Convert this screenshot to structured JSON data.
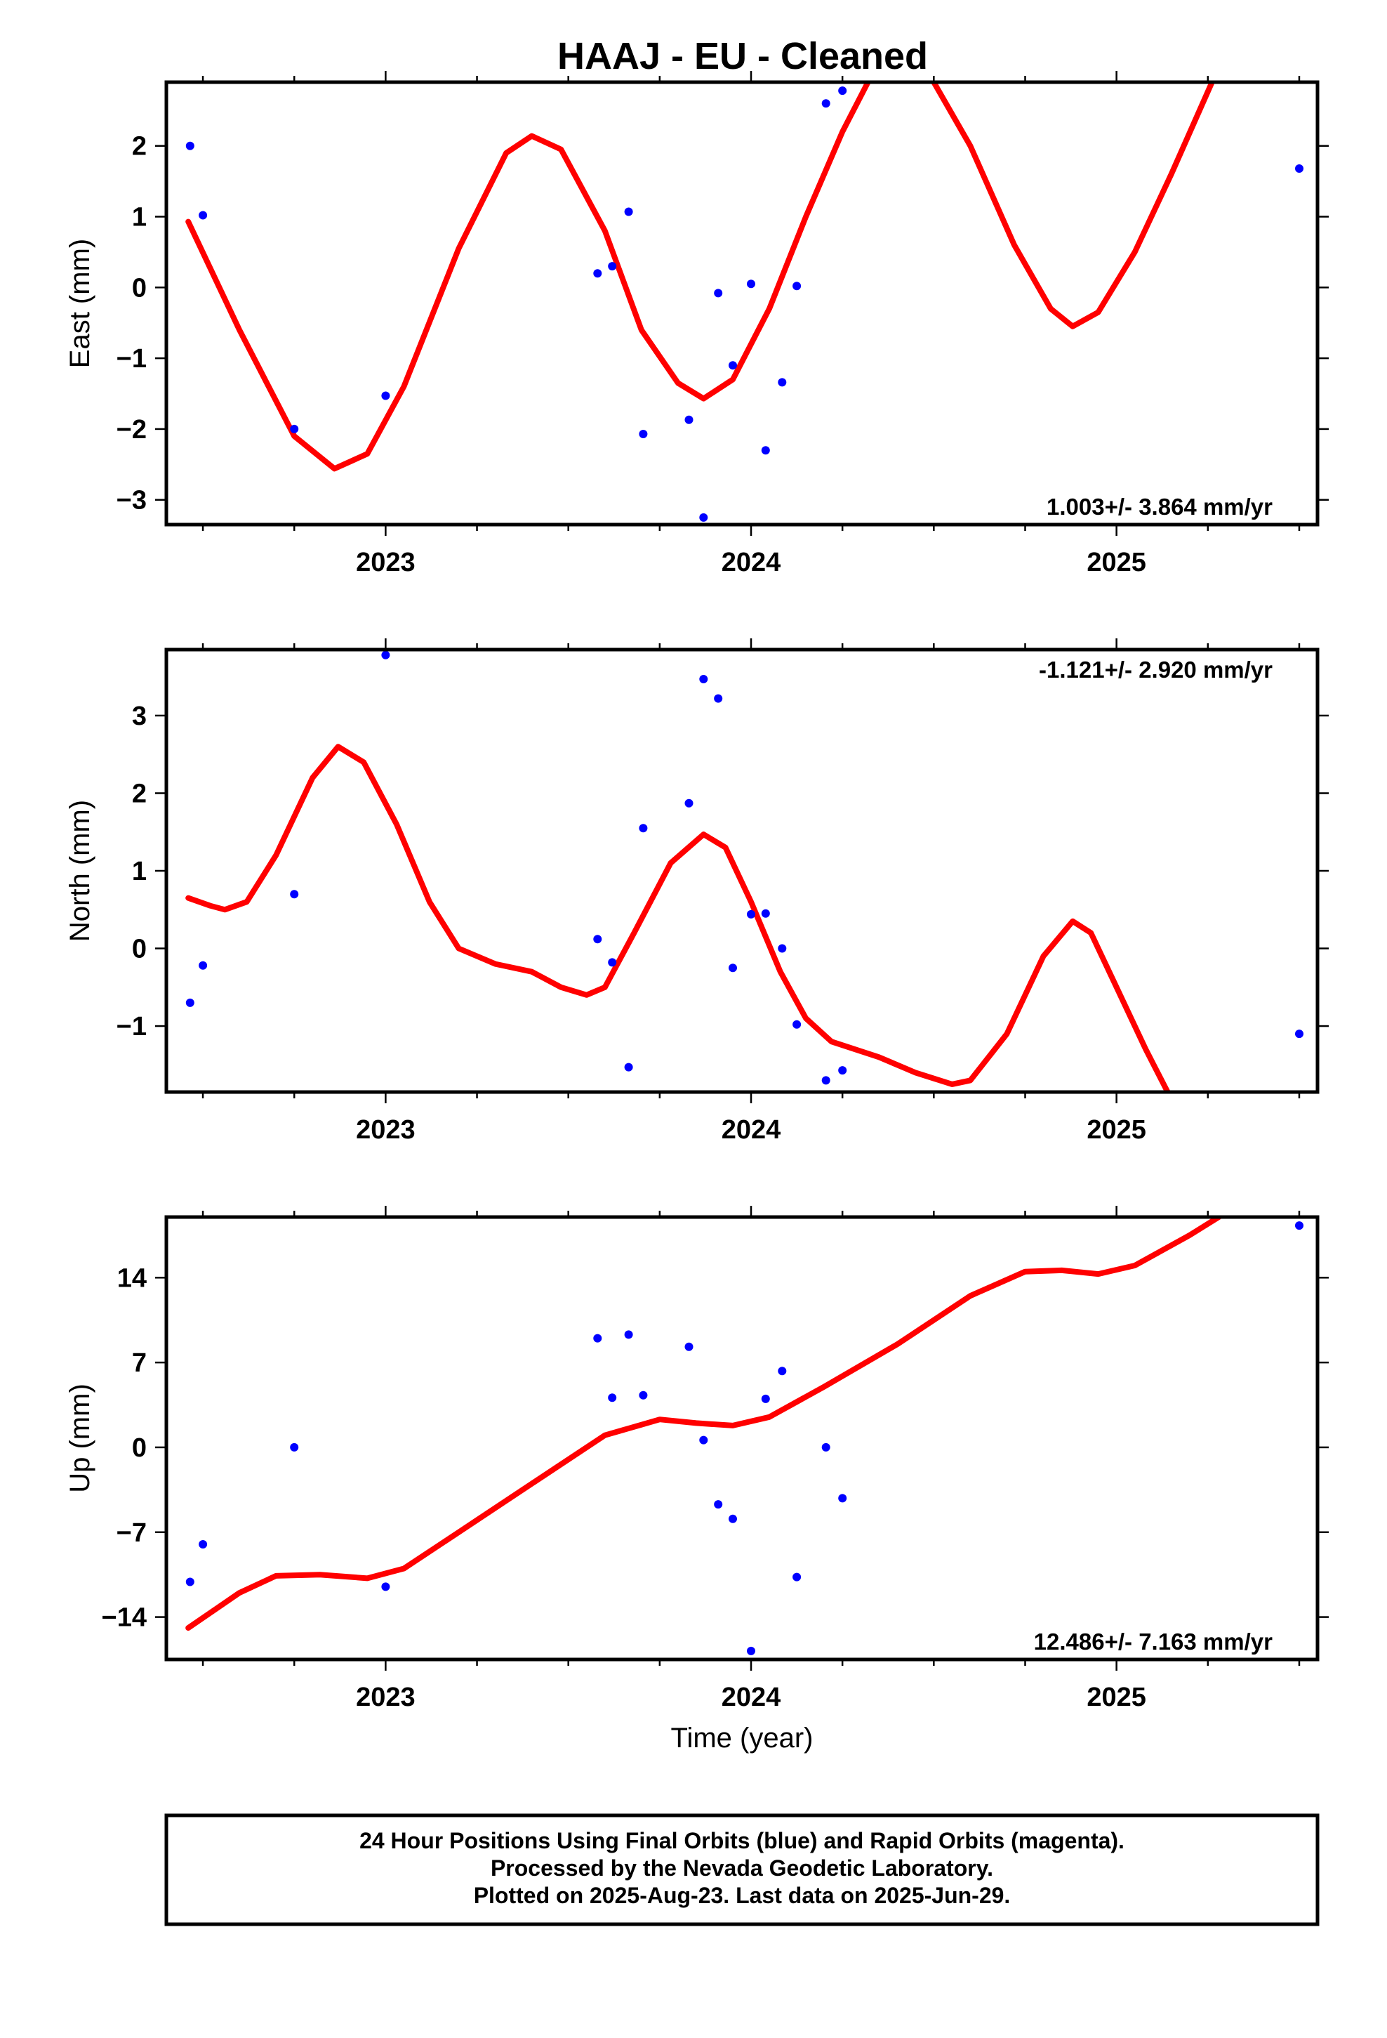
{
  "title": "HAAJ  - EU - Cleaned",
  "colors": {
    "final_orbit_point": "#0000ff",
    "model_fit_line": "#ff0000",
    "frame": "#000000"
  },
  "chart_data": [
    {
      "type": "scatter",
      "panel": "east",
      "ylabel": "East (mm)",
      "xlabel": "",
      "xlim": [
        2022.4,
        2025.55
      ],
      "ylim": [
        -3.35,
        2.9
      ],
      "xticks": [
        2023,
        2024,
        2025
      ],
      "yticks": [
        -3,
        -2,
        -1,
        0,
        1,
        2
      ],
      "ytick_labels": [
        "−3",
        "−2",
        "−1",
        "0",
        "1",
        "2"
      ],
      "rate_label": "1.003+/- 3.864 mm/yr",
      "rate_position": "bottom-right",
      "points": [
        [
          2022.465,
          2.0
        ],
        [
          2022.5,
          1.02
        ],
        [
          2022.75,
          -2.0
        ],
        [
          2023.0,
          -1.53
        ],
        [
          2023.58,
          0.2
        ],
        [
          2023.62,
          0.3
        ],
        [
          2023.665,
          1.07
        ],
        [
          2023.705,
          -2.07
        ],
        [
          2023.83,
          -1.87
        ],
        [
          2023.87,
          -3.25
        ],
        [
          2023.91,
          -0.08
        ],
        [
          2023.95,
          -1.1
        ],
        [
          2024.0,
          0.05
        ],
        [
          2024.04,
          -2.3
        ],
        [
          2024.085,
          -1.34
        ],
        [
          2024.125,
          0.02
        ],
        [
          2024.205,
          2.6
        ],
        [
          2024.25,
          2.78
        ],
        [
          2025.5,
          1.68
        ]
      ],
      "fit": [
        [
          2022.46,
          0.93
        ],
        [
          2022.6,
          -0.6
        ],
        [
          2022.75,
          -2.1
        ],
        [
          2022.86,
          -2.56
        ],
        [
          2022.95,
          -2.35
        ],
        [
          2023.05,
          -1.4
        ],
        [
          2023.2,
          0.55
        ],
        [
          2023.33,
          1.9
        ],
        [
          2023.4,
          2.14
        ],
        [
          2023.48,
          1.95
        ],
        [
          2023.6,
          0.8
        ],
        [
          2023.7,
          -0.6
        ],
        [
          2023.8,
          -1.35
        ],
        [
          2023.87,
          -1.57
        ],
        [
          2023.95,
          -1.3
        ],
        [
          2024.05,
          -0.3
        ],
        [
          2024.15,
          1.0
        ],
        [
          2024.25,
          2.2
        ],
        [
          2024.33,
          3.0
        ],
        [
          2024.42,
          3.15
        ],
        [
          2024.5,
          2.9
        ],
        [
          2024.6,
          2.0
        ],
        [
          2024.72,
          0.6
        ],
        [
          2024.82,
          -0.3
        ],
        [
          2024.88,
          -0.55
        ],
        [
          2024.95,
          -0.35
        ],
        [
          2025.05,
          0.5
        ],
        [
          2025.15,
          1.6
        ],
        [
          2025.27,
          3.0
        ]
      ]
    },
    {
      "type": "scatter",
      "panel": "north",
      "ylabel": "North (mm)",
      "xlabel": "",
      "xlim": [
        2022.4,
        2025.55
      ],
      "ylim": [
        -1.85,
        3.85
      ],
      "xticks": [
        2023,
        2024,
        2025
      ],
      "yticks": [
        -1,
        0,
        1,
        2,
        3
      ],
      "ytick_labels": [
        "−1",
        "0",
        "1",
        "2",
        "3"
      ],
      "rate_label": "-1.121+/- 2.920 mm/yr",
      "rate_position": "top-right",
      "points": [
        [
          2022.465,
          -0.7
        ],
        [
          2022.5,
          -0.22
        ],
        [
          2022.75,
          0.7
        ],
        [
          2023.0,
          3.78
        ],
        [
          2023.58,
          0.12
        ],
        [
          2023.62,
          -0.18
        ],
        [
          2023.665,
          -1.53
        ],
        [
          2023.705,
          1.55
        ],
        [
          2023.83,
          1.87
        ],
        [
          2023.87,
          3.47
        ],
        [
          2023.91,
          3.22
        ],
        [
          2023.95,
          -0.25
        ],
        [
          2024.0,
          0.44
        ],
        [
          2024.04,
          0.45
        ],
        [
          2024.085,
          0.0
        ],
        [
          2024.125,
          -0.98
        ],
        [
          2024.205,
          -1.7
        ],
        [
          2024.25,
          -1.57
        ],
        [
          2025.5,
          -1.1
        ]
      ],
      "fit": [
        [
          2022.46,
          0.65
        ],
        [
          2022.52,
          0.55
        ],
        [
          2022.56,
          0.5
        ],
        [
          2022.62,
          0.6
        ],
        [
          2022.7,
          1.2
        ],
        [
          2022.8,
          2.2
        ],
        [
          2022.87,
          2.6
        ],
        [
          2022.94,
          2.4
        ],
        [
          2023.03,
          1.6
        ],
        [
          2023.12,
          0.6
        ],
        [
          2023.2,
          0.0
        ],
        [
          2023.3,
          -0.2
        ],
        [
          2023.4,
          -0.3
        ],
        [
          2023.48,
          -0.5
        ],
        [
          2023.55,
          -0.6
        ],
        [
          2023.6,
          -0.5
        ],
        [
          2023.68,
          0.2
        ],
        [
          2023.78,
          1.1
        ],
        [
          2023.87,
          1.47
        ],
        [
          2023.93,
          1.3
        ],
        [
          2024.0,
          0.6
        ],
        [
          2024.08,
          -0.3
        ],
        [
          2024.15,
          -0.9
        ],
        [
          2024.22,
          -1.2
        ],
        [
          2024.35,
          -1.4
        ],
        [
          2024.45,
          -1.6
        ],
        [
          2024.55,
          -1.75
        ],
        [
          2024.6,
          -1.7
        ],
        [
          2024.7,
          -1.1
        ],
        [
          2024.8,
          -0.1
        ],
        [
          2024.88,
          0.35
        ],
        [
          2024.93,
          0.2
        ],
        [
          2025.0,
          -0.5
        ],
        [
          2025.08,
          -1.3
        ],
        [
          2025.14,
          -1.85
        ]
      ]
    },
    {
      "type": "scatter",
      "panel": "up",
      "ylabel": "Up (mm)",
      "xlabel": "Time (year)",
      "xlim": [
        2022.4,
        2025.55
      ],
      "ylim": [
        -17.5,
        19.0
      ],
      "xticks": [
        2023,
        2024,
        2025
      ],
      "yticks": [
        -14,
        -7,
        0,
        7,
        14
      ],
      "ytick_labels": [
        "−14",
        "−7",
        "0",
        "7",
        "14"
      ],
      "rate_label": "12.486+/- 7.163 mm/yr",
      "rate_position": "bottom-right",
      "points": [
        [
          2022.465,
          -11.1
        ],
        [
          2022.5,
          -8.0
        ],
        [
          2022.75,
          0.0
        ],
        [
          2023.0,
          -11.5
        ],
        [
          2023.58,
          9.0
        ],
        [
          2023.62,
          4.1
        ],
        [
          2023.665,
          9.3
        ],
        [
          2023.705,
          4.3
        ],
        [
          2023.83,
          8.3
        ],
        [
          2023.87,
          0.6
        ],
        [
          2023.91,
          -4.7
        ],
        [
          2023.95,
          -5.9
        ],
        [
          2024.0,
          -16.8
        ],
        [
          2024.04,
          4.0
        ],
        [
          2024.085,
          6.3
        ],
        [
          2024.125,
          -10.7
        ],
        [
          2024.205,
          0.0
        ],
        [
          2024.25,
          -4.2
        ],
        [
          2025.5,
          18.3
        ]
      ],
      "fit": [
        [
          2022.46,
          -14.9
        ],
        [
          2022.6,
          -12.0
        ],
        [
          2022.7,
          -10.6
        ],
        [
          2022.82,
          -10.5
        ],
        [
          2022.95,
          -10.8
        ],
        [
          2023.05,
          -10.0
        ],
        [
          2023.2,
          -7.0
        ],
        [
          2023.4,
          -3.0
        ],
        [
          2023.6,
          1.0
        ],
        [
          2023.75,
          2.3
        ],
        [
          2023.85,
          2.0
        ],
        [
          2023.95,
          1.8
        ],
        [
          2024.05,
          2.5
        ],
        [
          2024.2,
          5.0
        ],
        [
          2024.4,
          8.5
        ],
        [
          2024.6,
          12.5
        ],
        [
          2024.75,
          14.5
        ],
        [
          2024.85,
          14.6
        ],
        [
          2024.95,
          14.3
        ],
        [
          2025.05,
          15.0
        ],
        [
          2025.2,
          17.5
        ],
        [
          2025.28,
          19.0
        ]
      ]
    }
  ],
  "footer": {
    "line1": "24 Hour Positions Using Final Orbits (blue) and Rapid Orbits (magenta).",
    "line2": "Processed by the Nevada Geodetic Laboratory.",
    "line3": "Plotted on 2025-Aug-23. Last data on 2025-Jun-29."
  }
}
